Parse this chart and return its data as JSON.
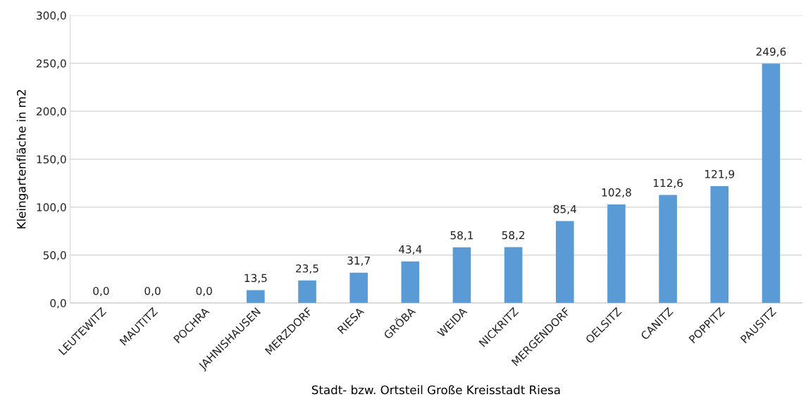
{
  "chart_data": {
    "type": "bar",
    "xlabel": "Stadt- bzw. Ortsteil Große Kreisstadt Riesa",
    "ylabel": "Kleingartenfläche in m2",
    "categories": [
      "LEUTEWITZ",
      "MAUTITZ",
      "POCHRA",
      "JAHNISHAUSEN",
      "MERZDORF",
      "RIESA",
      "GRÖBA",
      "WEIDA",
      "NICKRITZ",
      "MERGENDORF",
      "OELSITZ",
      "CANITZ",
      "POPPITZ",
      "PAUSITZ"
    ],
    "values": [
      0.0,
      0.0,
      0.0,
      13.5,
      23.5,
      31.7,
      43.4,
      58.1,
      58.2,
      85.4,
      102.8,
      112.6,
      121.9,
      249.6
    ],
    "value_labels": [
      "0,0",
      "0,0",
      "0,0",
      "13,5",
      "23,5",
      "31,7",
      "43,4",
      "58,1",
      "58,2",
      "85,4",
      "102,8",
      "112,6",
      "121,9",
      "249,6"
    ],
    "color": "#5b9bd5",
    "ylim": [
      0,
      300
    ],
    "yticks": [
      {
        "value": 0,
        "label": "0,0"
      },
      {
        "value": 50,
        "label": "50,0"
      },
      {
        "value": 100,
        "label": "100,0"
      },
      {
        "value": 150,
        "label": "150,0"
      },
      {
        "value": 200,
        "label": "200,0"
      },
      {
        "value": 250,
        "label": "250,0"
      },
      {
        "value": 300,
        "label": "300,0"
      }
    ],
    "grid": "y",
    "legend": false
  }
}
